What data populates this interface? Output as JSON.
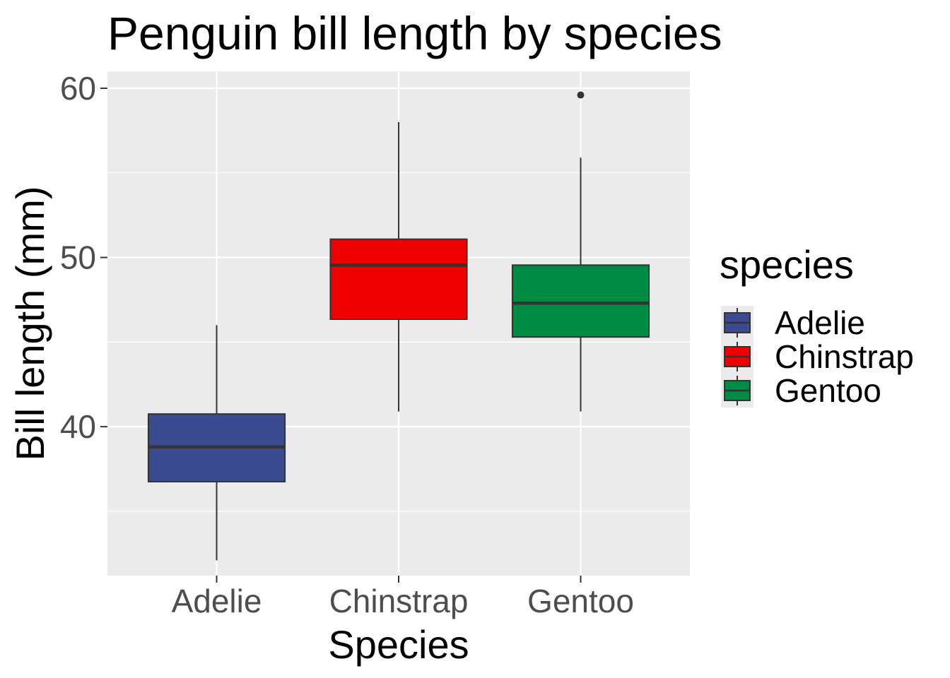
{
  "chart_data": {
    "type": "box",
    "title": "Penguin bill length by species",
    "xlabel": "Species",
    "ylabel": "Bill length (mm)",
    "ylim": [
      31.2,
      61.0
    ],
    "y_ticks": [
      40,
      50,
      60
    ],
    "y_tick_labels": [
      "40",
      "50",
      "60"
    ],
    "y_minor_ticks": [
      35,
      45,
      55
    ],
    "grid": true,
    "categories": [
      "Adelie",
      "Chinstrap",
      "Gentoo"
    ],
    "boxes": [
      {
        "category": "Adelie",
        "whisker_low": 32.1,
        "q1": 36.75,
        "median": 38.8,
        "q3": 40.75,
        "whisker_high": 46.0,
        "outliers": [],
        "color": "#3C4A92"
      },
      {
        "category": "Chinstrap",
        "whisker_low": 40.9,
        "q1": 46.35,
        "median": 49.55,
        "q3": 51.08,
        "whisker_high": 58.0,
        "outliers": [],
        "color": "#EE0000"
      },
      {
        "category": "Gentoo",
        "whisker_low": 40.9,
        "q1": 45.3,
        "median": 47.3,
        "q3": 49.55,
        "whisker_high": 55.9,
        "outliers": [
          59.6
        ],
        "color": "#008B45"
      }
    ],
    "legend": {
      "title": "species",
      "position": "right",
      "items": [
        {
          "label": "Adelie",
          "color": "#3C4A92"
        },
        {
          "label": "Chinstrap",
          "color": "#EE0000"
        },
        {
          "label": "Gentoo",
          "color": "#008B45"
        }
      ]
    },
    "panel_color": "#EBEBEB",
    "grid_color": "#FFFFFF"
  }
}
